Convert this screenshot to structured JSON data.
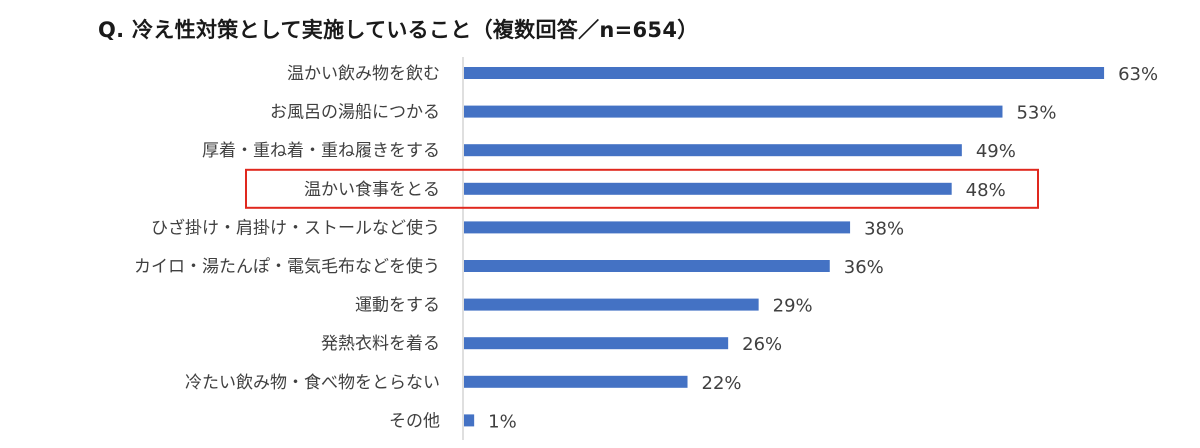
{
  "title": "Q. 冷え性対策として実施していること（複数回答／n=654）",
  "colors": {
    "bar": "#4472c4",
    "highlight_border": "#e0281e",
    "axis": "#bfbfbf",
    "label_text": "#404040",
    "value_text": "#404040"
  },
  "chart_data": {
    "type": "bar",
    "orientation": "horizontal",
    "title": "Q. 冷え性対策として実施していること（複数回答／n=654）",
    "categories": [
      "温かい飲み物を飲む",
      "お風呂の湯船につかる",
      "厚着・重ね着・重ね履きをする",
      "温かい食事をとる",
      "ひざ掛け・肩掛け・ストールなど使う",
      "カイロ・湯たんぽ・電気毛布などを使う",
      "運動をする",
      "発熱衣料を着る",
      "冷たい飲み物・食べ物をとらない",
      "その他"
    ],
    "values": [
      63,
      53,
      49,
      48,
      38,
      36,
      29,
      26,
      22,
      1
    ],
    "value_labels": [
      "63%",
      "53%",
      "49%",
      "48%",
      "38%",
      "36%",
      "29%",
      "26%",
      "22%",
      "1%"
    ],
    "unit": "%",
    "highlighted_category": "温かい食事をとる",
    "xlim": [
      0,
      100
    ],
    "grid": false,
    "legend": "none"
  }
}
